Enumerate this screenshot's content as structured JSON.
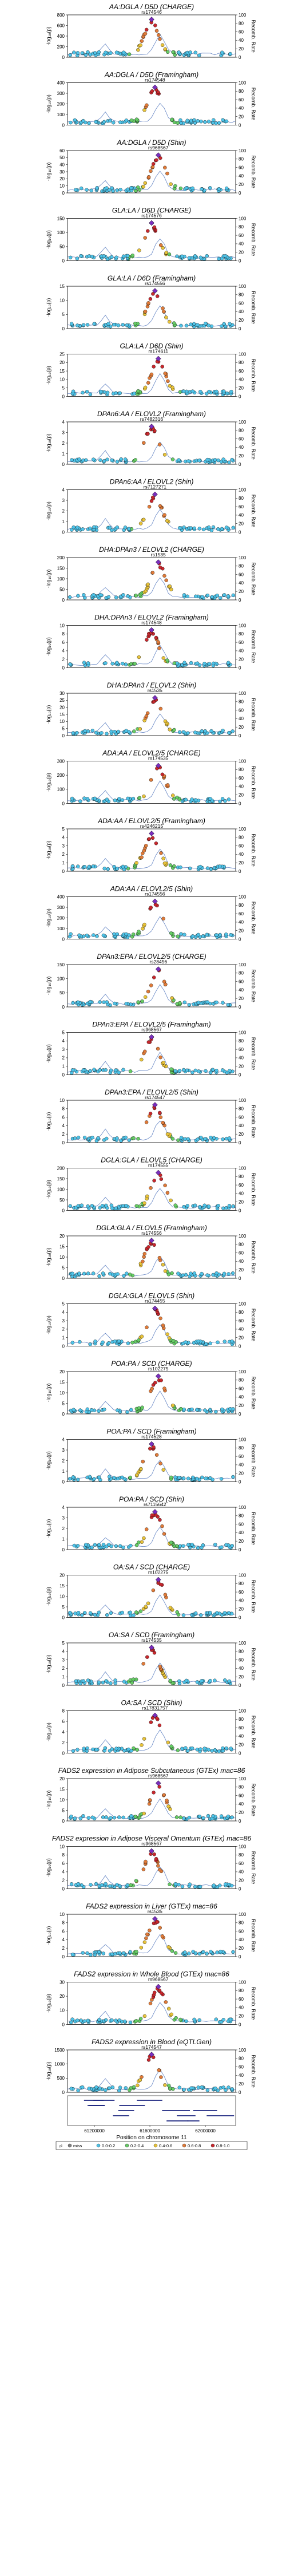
{
  "chart_data": {
    "type": "scatter",
    "panels": [
      {
        "title": "AA:DGLA / D5D (CHARGE)",
        "lead": "rs174546",
        "ymax": 800,
        "ticks": [
          0,
          200,
          400,
          600,
          800
        ]
      },
      {
        "title": "AA:DGLA / D5D (Framingham)",
        "lead": "rs174548",
        "ymax": 400,
        "ticks": [
          0,
          100,
          200,
          300,
          400
        ]
      },
      {
        "title": "AA:DGLA / D5D (Shin)",
        "lead": "rs968567",
        "ymax": 60,
        "ticks": [
          0,
          10,
          20,
          30,
          40,
          50,
          60
        ]
      },
      {
        "title": "GLA:LA / D6D (CHARGE)",
        "lead": "rs174576",
        "ymax": 150,
        "ticks": [
          0,
          50,
          100,
          150
        ]
      },
      {
        "title": "GLA:LA / D6D (Framingham)",
        "lead": "rs174556",
        "ymax": 15,
        "ticks": [
          0,
          5,
          10,
          15
        ]
      },
      {
        "title": "GLA:LA / D6D (Shin)",
        "lead": "rs174611",
        "ymax": 25,
        "ticks": [
          0,
          5,
          10,
          15,
          20,
          25
        ]
      },
      {
        "title": "DPAn6:AA / ELOVL2 (Framingham)",
        "lead": "rs7482316",
        "ymax": 4,
        "ticks": [
          0,
          1,
          2,
          3,
          4
        ]
      },
      {
        "title": "DPAn6:AA / ELOVL2 (Shin)",
        "lead": "rs7127271",
        "ymax": 4,
        "ticks": [
          0,
          1,
          2,
          3,
          4
        ]
      },
      {
        "title": "DHA:DPAn3 / ELOVL2 (CHARGE)",
        "lead": "rs1535",
        "ymax": 200,
        "ticks": [
          0,
          50,
          100,
          150,
          200
        ]
      },
      {
        "title": "DHA:DPAn3 / ELOVL2 (Framingham)",
        "lead": "rs174548",
        "ymax": 10,
        "ticks": [
          0,
          2,
          4,
          6,
          8,
          10
        ]
      },
      {
        "title": "DHA:DPAn3 / ELOVL2 (Shin)",
        "lead": "rs1535",
        "ymax": 30,
        "ticks": [
          0,
          5,
          10,
          15,
          20,
          25,
          30
        ]
      },
      {
        "title": "ADA:AA / ELOVL2/5 (CHARGE)",
        "lead": "rs174535",
        "ymax": 300,
        "ticks": [
          0,
          100,
          200,
          300
        ]
      },
      {
        "title": "ADA:AA / ELOVL2/5 (Framingham)",
        "lead": "rs4246215",
        "ymax": 5,
        "ticks": [
          0,
          1,
          2,
          3,
          4,
          5
        ]
      },
      {
        "title": "ADA:AA / ELOVL2/5 (Shin)",
        "lead": "rs174556",
        "ymax": 400,
        "ticks": [
          0,
          100,
          200,
          300,
          400
        ]
      },
      {
        "title": "DPAn3:EPA / ELOVL2/5 (CHARGE)",
        "lead": "rs28456",
        "ymax": 150,
        "ticks": [
          0,
          50,
          100,
          150
        ]
      },
      {
        "title": "DPAn3:EPA / ELOVL2/5 (Framingham)",
        "lead": "rs968567",
        "ymax": 5,
        "ticks": [
          0,
          1,
          2,
          3,
          4,
          5
        ]
      },
      {
        "title": "DPAn3:EPA / ELOVL2/5 (Shin)",
        "lead": "rs174547",
        "ymax": 10,
        "ticks": [
          0,
          2,
          4,
          6,
          8,
          10
        ]
      },
      {
        "title": "DGLA:GLA / ELOVL5 (CHARGE)",
        "lead": "rs174555",
        "ymax": 200,
        "ticks": [
          0,
          50,
          100,
          150,
          200
        ]
      },
      {
        "title": "DGLA:GLA / ELOVL5 (Framingham)",
        "lead": "rs174556",
        "ymax": 20,
        "ticks": [
          0,
          5,
          10,
          15,
          20
        ]
      },
      {
        "title": "DGLA:GLA / ELOVL5 (Shin)",
        "lead": "rs174455",
        "ymax": 5,
        "ticks": [
          0,
          1,
          2,
          3,
          4,
          5
        ]
      },
      {
        "title": "POA:PA / SCD (CHARGE)",
        "lead": "rs102275",
        "ymax": 20,
        "ticks": [
          0,
          5,
          10,
          15,
          20
        ]
      },
      {
        "title": "POA:PA / SCD (Framingham)",
        "lead": "rs174528",
        "ymax": 4,
        "ticks": [
          0,
          1,
          2,
          3,
          4
        ]
      },
      {
        "title": "POA:PA / SCD (Shin)",
        "lead": "rs7115642",
        "ymax": 4,
        "ticks": [
          0,
          1,
          2,
          3,
          4
        ]
      },
      {
        "title": "OA:SA / SCD (CHARGE)",
        "lead": "rs102275",
        "ymax": 20,
        "ticks": [
          0,
          5,
          10,
          15,
          20
        ]
      },
      {
        "title": "OA:SA / SCD (Framingham)",
        "lead": "rs174535",
        "ymax": 5,
        "ticks": [
          0,
          1,
          2,
          3,
          4,
          5
        ]
      },
      {
        "title": "OA:SA / SCD (Shin)",
        "lead": "rs17831757",
        "ymax": 8,
        "ticks": [
          0,
          2,
          4,
          6,
          8
        ]
      },
      {
        "title": "FADS2 expression in Adipose Subcutaneous (GTEx) mac=86",
        "lead": "rs968567",
        "ymax": 20,
        "ticks": [
          0,
          5,
          10,
          15,
          20
        ]
      },
      {
        "title": "FADS2 expression in Adipose Visceral Omentum (GTEx) mac=86",
        "lead": "rs968567",
        "ymax": 10,
        "ticks": [
          0,
          2,
          4,
          6,
          8,
          10
        ]
      },
      {
        "title": "FADS2 expression in Liver (GTEx) mac=86",
        "lead": "rs1535",
        "ymax": 10,
        "ticks": [
          0,
          2,
          4,
          6,
          8,
          10
        ]
      },
      {
        "title": "FADS2 expression in Whole Blood (GTEx) mac=86",
        "lead": "rs968567",
        "ymax": 30,
        "ticks": [
          0,
          10,
          20,
          30
        ]
      },
      {
        "title": "FADS2 expression in Blood (eQTLGen)",
        "lead": "rs174547",
        "ymax": 1500,
        "ticks": [
          0,
          500,
          1000,
          1500
        ]
      }
    ],
    "ylabel": "-log₁₀(p)",
    "y2label": "Recomb. Rate",
    "y2ticks": [
      0,
      20,
      40,
      60,
      80,
      100
    ],
    "xlabel": "Position on chromosome 11",
    "xticks": [
      "61200000",
      "61600000",
      "62000000"
    ],
    "legend": {
      "title": "r²",
      "entries": [
        "miss",
        "0.0-0.2",
        "0.2-0.4",
        "0.4-0.6",
        "0.6-0.8",
        "0.8-1.0"
      ],
      "colors": [
        "#808080",
        "#4fc3e8",
        "#66cc66",
        "#e8c33a",
        "#e07b39",
        "#c8282d"
      ]
    }
  }
}
